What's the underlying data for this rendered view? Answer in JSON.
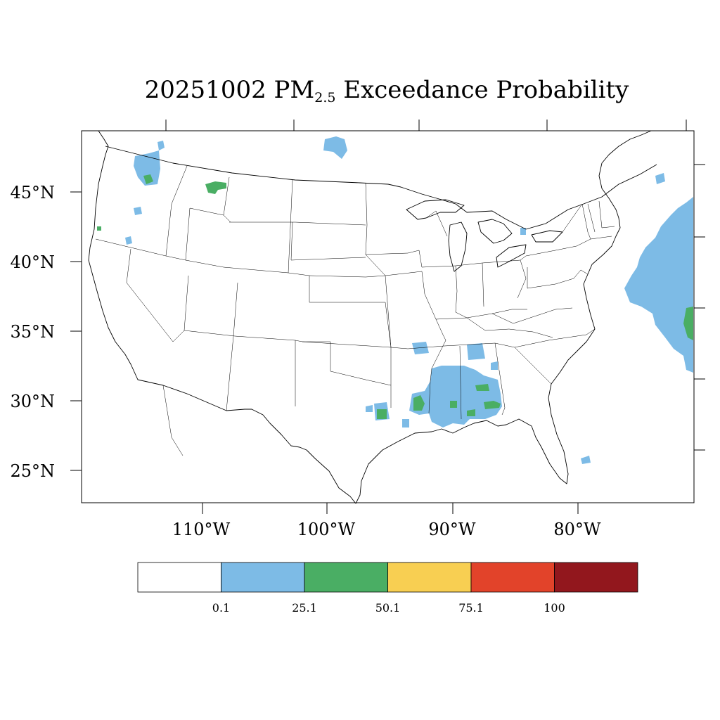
{
  "title": {
    "date": "20251002",
    "pollutant": "PM",
    "pollutant_sub": "2.5",
    "rest": "Exceedance Probability"
  },
  "axes": {
    "lat_labels": [
      "45°N",
      "40°N",
      "35°N",
      "30°N",
      "25°N"
    ],
    "lon_labels": [
      "110°W",
      "100°W",
      "90°W",
      "80°W"
    ]
  },
  "legend": {
    "colors": [
      "#ffffff",
      "#7dbbe6",
      "#4aae64",
      "#f8cf52",
      "#e2432a",
      "#92171d"
    ],
    "labels": [
      "0.1",
      "25.1",
      "50.1",
      "75.1",
      "100"
    ]
  },
  "probability_areas": [
    {
      "region": "Washington",
      "level": "0.1-25.1"
    },
    {
      "region": "Montana",
      "level": "25.1-50.1"
    },
    {
      "region": "Lower Mississippi / Gulf Coast",
      "level": "25.1-50.1"
    },
    {
      "region": "Atlantic offshore",
      "level": "25.1-50.1"
    }
  ]
}
